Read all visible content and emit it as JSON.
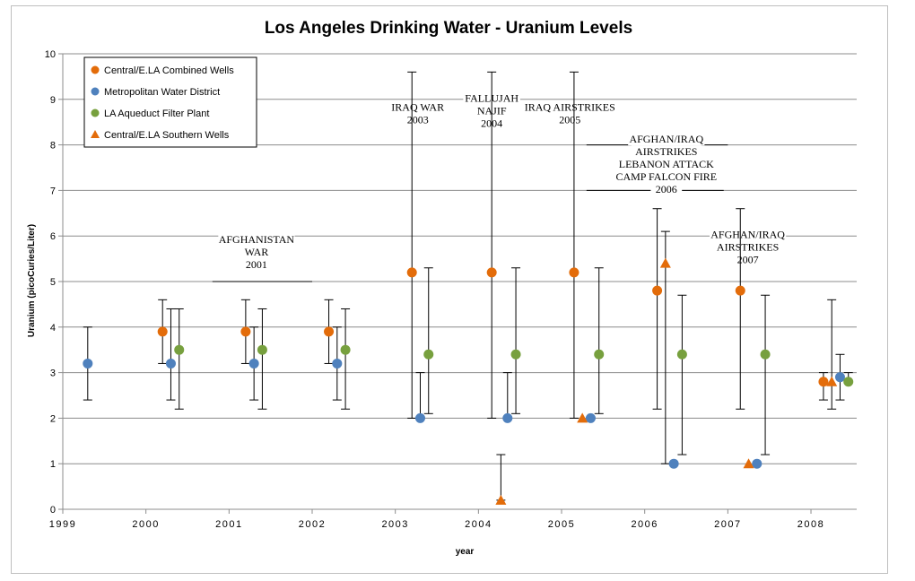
{
  "chart_data": {
    "type": "scatter",
    "title": "Los Angeles Drinking Water - Uranium Levels",
    "xlabel": "year",
    "ylabel": "Uranium (picoCuries/Liter)",
    "xlim": [
      1999,
      2008.55
    ],
    "ylim": [
      0,
      10
    ],
    "x_ticks": [
      "1999",
      "2000",
      "2001",
      "2002",
      "2003",
      "2004",
      "2005",
      "2006",
      "2007",
      "2008"
    ],
    "y_ticks": [
      "0",
      "1",
      "2",
      "3",
      "4",
      "5",
      "6",
      "7",
      "8",
      "9",
      "10"
    ],
    "grid": "horizontal",
    "legend_position": "top-left",
    "series": [
      {
        "name": "Central/E.LA Combined Wells",
        "color": "#E36C0A",
        "marker": "circle",
        "points": [
          {
            "x": 2000.2,
            "y": 3.9,
            "low": 3.2,
            "high": 4.6
          },
          {
            "x": 2001.2,
            "y": 3.9,
            "low": 3.2,
            "high": 4.6
          },
          {
            "x": 2002.2,
            "y": 3.9,
            "low": 3.2,
            "high": 4.6
          },
          {
            "x": 2003.2,
            "y": 5.2,
            "low": 2.0,
            "high": 9.6
          },
          {
            "x": 2004.16,
            "y": 5.2,
            "low": 2.0,
            "high": 9.6
          },
          {
            "x": 2005.15,
            "y": 5.2,
            "low": 2.0,
            "high": 9.6
          },
          {
            "x": 2006.15,
            "y": 4.8,
            "low": 2.2,
            "high": 6.6
          },
          {
            "x": 2007.15,
            "y": 4.8,
            "low": 2.2,
            "high": 6.6
          },
          {
            "x": 2008.15,
            "y": 2.8,
            "low": 2.4,
            "high": 3.0
          }
        ]
      },
      {
        "name": "Metropolitan Water District",
        "color": "#4F81BD",
        "marker": "circle",
        "points": [
          {
            "x": 1999.3,
            "y": 3.2,
            "low": 2.4,
            "high": 4.0
          },
          {
            "x": 2000.3,
            "y": 3.2,
            "low": 2.4,
            "high": 4.4
          },
          {
            "x": 2001.3,
            "y": 3.2,
            "low": 2.4,
            "high": 4.0
          },
          {
            "x": 2002.3,
            "y": 3.2,
            "low": 2.4,
            "high": 4.0
          },
          {
            "x": 2003.3,
            "y": 2.0,
            "low": 2.0,
            "high": 3.0
          },
          {
            "x": 2004.35,
            "y": 2.0,
            "low": 2.0,
            "high": 3.0
          },
          {
            "x": 2005.35,
            "y": 2.0,
            "low": 2.0,
            "high": 2.0
          },
          {
            "x": 2006.35,
            "y": 1.0,
            "low": 1.0,
            "high": 1.0
          },
          {
            "x": 2007.35,
            "y": 1.0,
            "low": 1.0,
            "high": 1.0
          },
          {
            "x": 2008.35,
            "y": 2.9,
            "low": 2.4,
            "high": 3.4
          }
        ]
      },
      {
        "name": "LA Aqueduct Filter Plant",
        "color": "#77A03E",
        "marker": "circle",
        "points": [
          {
            "x": 2000.4,
            "y": 3.5,
            "low": 2.2,
            "high": 4.4
          },
          {
            "x": 2001.4,
            "y": 3.5,
            "low": 2.2,
            "high": 4.4
          },
          {
            "x": 2002.4,
            "y": 3.5,
            "low": 2.2,
            "high": 4.4
          },
          {
            "x": 2003.4,
            "y": 3.4,
            "low": 2.1,
            "high": 5.3
          },
          {
            "x": 2004.45,
            "y": 3.4,
            "low": 2.1,
            "high": 5.3
          },
          {
            "x": 2005.45,
            "y": 3.4,
            "low": 2.1,
            "high": 5.3
          },
          {
            "x": 2006.45,
            "y": 3.4,
            "low": 1.2,
            "high": 4.7
          },
          {
            "x": 2007.45,
            "y": 3.4,
            "low": 1.2,
            "high": 4.7
          },
          {
            "x": 2008.45,
            "y": 2.8,
            "low": 2.8,
            "high": 3.0
          }
        ]
      },
      {
        "name": "Central/E.LA Southern Wells",
        "color": "#E36C0A",
        "marker": "triangle",
        "points": [
          {
            "x": 2004.27,
            "y": 0.2,
            "low": 0.2,
            "high": 1.2
          },
          {
            "x": 2005.25,
            "y": 2.0,
            "low": 2.0,
            "high": 2.0
          },
          {
            "x": 2006.25,
            "y": 5.4,
            "low": 1.0,
            "high": 6.1
          },
          {
            "x": 2007.25,
            "y": 1.0,
            "low": 1.0,
            "high": 1.0
          },
          {
            "x": 2008.25,
            "y": 2.8,
            "low": 2.2,
            "high": 4.6
          }
        ]
      }
    ],
    "annotations": [
      {
        "lines": [
          "AFGHANISTAN",
          "WAR",
          "2001"
        ],
        "x": 2001.33,
        "y": 5.85,
        "bar": {
          "from": 2000.8,
          "to": 2002.0,
          "y": 5.0
        }
      },
      {
        "lines": [
          "IRAQ WAR",
          "2003"
        ],
        "x": 2003.27,
        "y": 8.75
      },
      {
        "lines": [
          "FALLUJAH",
          "NAJIF",
          "2004"
        ],
        "x": 2004.16,
        "y": 8.95
      },
      {
        "lines": [
          "IRAQ AIRSTRIKES",
          "2005"
        ],
        "x": 2005.1,
        "y": 8.75
      },
      {
        "lines": [
          "AFGHAN/IRAQ",
          "AIRSTRIKES",
          "LEBANON ATTACK",
          "CAMP FALCON FIRE",
          "2006"
        ],
        "x": 2006.26,
        "y": 8.05,
        "bar": {
          "from": 2005.3,
          "to": 2007.0,
          "y": 8.0
        },
        "bar2": {
          "from": 2005.3,
          "to": 2006.95,
          "y": 7.0
        }
      },
      {
        "lines": [
          "AFGHAN/IRAQ",
          "AIRSTRIKES",
          "2007"
        ],
        "x": 2007.24,
        "y": 5.95
      }
    ]
  }
}
